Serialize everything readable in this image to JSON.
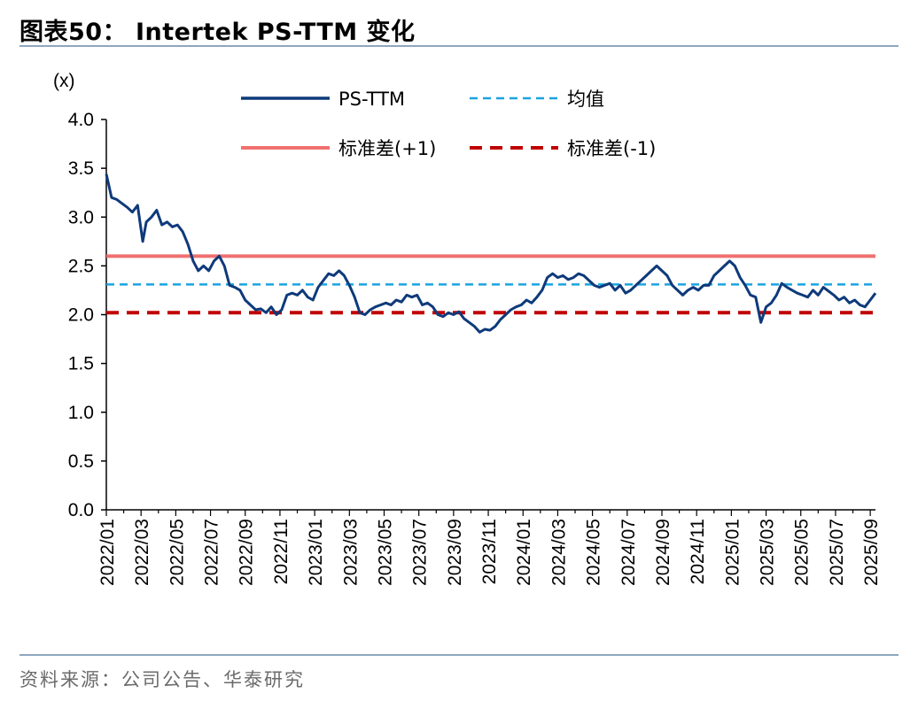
{
  "header": {
    "title": "图表50： Intertek PS-TTM 变化"
  },
  "footer": {
    "source": "资料来源：公司公告、华泰研究"
  },
  "chart_data": {
    "type": "line",
    "unit_label": "(x)",
    "ylim": [
      0.0,
      4.0
    ],
    "yticks": [
      "0.0",
      "0.5",
      "1.0",
      "1.5",
      "2.0",
      "2.5",
      "3.0",
      "3.5",
      "4.0"
    ],
    "xticks": [
      "2022/01",
      "2022/03",
      "2022/05",
      "2022/07",
      "2022/09",
      "2022/11",
      "2023/01",
      "2023/03",
      "2023/05",
      "2023/07",
      "2023/09",
      "2023/11",
      "2024/01",
      "2024/03",
      "2024/05",
      "2024/07",
      "2024/09",
      "2024/11",
      "2025/01",
      "2025/03",
      "2025/05",
      "2025/07",
      "2025/09"
    ],
    "legend_placement": "top",
    "grid": false,
    "colors": {
      "ps_ttm": "#0e3a7a",
      "mean": "#1aa3e0",
      "plus1": "#f07070",
      "minus1": "#c00000"
    },
    "series": [
      {
        "name": "PS-TTM",
        "points": [
          [
            0.0,
            3.44
          ],
          [
            0.3,
            3.2
          ],
          [
            0.6,
            3.18
          ],
          [
            0.9,
            3.14
          ],
          [
            1.2,
            3.1
          ],
          [
            1.5,
            3.05
          ],
          [
            1.8,
            3.12
          ],
          [
            2.1,
            2.75
          ],
          [
            2.3,
            2.95
          ],
          [
            2.6,
            3.0
          ],
          [
            2.9,
            3.07
          ],
          [
            3.2,
            2.92
          ],
          [
            3.5,
            2.95
          ],
          [
            3.8,
            2.9
          ],
          [
            4.1,
            2.92
          ],
          [
            4.4,
            2.85
          ],
          [
            4.7,
            2.72
          ],
          [
            5.0,
            2.55
          ],
          [
            5.3,
            2.45
          ],
          [
            5.6,
            2.5
          ],
          [
            5.9,
            2.45
          ],
          [
            6.2,
            2.55
          ],
          [
            6.5,
            2.6
          ],
          [
            6.8,
            2.5
          ],
          [
            7.1,
            2.3
          ],
          [
            7.4,
            2.28
          ],
          [
            7.7,
            2.25
          ],
          [
            8.0,
            2.15
          ],
          [
            8.3,
            2.1
          ],
          [
            8.6,
            2.05
          ],
          [
            8.9,
            2.06
          ],
          [
            9.2,
            2.02
          ],
          [
            9.5,
            2.08
          ],
          [
            9.8,
            2.0
          ],
          [
            10.1,
            2.05
          ],
          [
            10.4,
            2.2
          ],
          [
            10.7,
            2.22
          ],
          [
            11.0,
            2.2
          ],
          [
            11.3,
            2.25
          ],
          [
            11.6,
            2.18
          ],
          [
            11.9,
            2.15
          ],
          [
            12.2,
            2.28
          ],
          [
            12.5,
            2.35
          ],
          [
            12.8,
            2.42
          ],
          [
            13.1,
            2.4
          ],
          [
            13.4,
            2.45
          ],
          [
            13.7,
            2.4
          ],
          [
            14.0,
            2.3
          ],
          [
            14.3,
            2.18
          ],
          [
            14.6,
            2.02
          ],
          [
            14.9,
            2.0
          ],
          [
            15.2,
            2.05
          ],
          [
            15.5,
            2.08
          ],
          [
            15.8,
            2.1
          ],
          [
            16.1,
            2.12
          ],
          [
            16.4,
            2.1
          ],
          [
            16.7,
            2.15
          ],
          [
            17.0,
            2.13
          ],
          [
            17.3,
            2.2
          ],
          [
            17.6,
            2.18
          ],
          [
            17.9,
            2.2
          ],
          [
            18.2,
            2.1
          ],
          [
            18.5,
            2.12
          ],
          [
            18.8,
            2.08
          ],
          [
            19.1,
            2.0
          ],
          [
            19.4,
            1.98
          ],
          [
            19.7,
            2.02
          ],
          [
            20.0,
            2.0
          ],
          [
            20.3,
            2.03
          ],
          [
            20.6,
            1.96
          ],
          [
            20.9,
            1.92
          ],
          [
            21.2,
            1.88
          ],
          [
            21.5,
            1.82
          ],
          [
            21.8,
            1.85
          ],
          [
            22.1,
            1.84
          ],
          [
            22.4,
            1.88
          ],
          [
            22.7,
            1.95
          ],
          [
            23.0,
            2.0
          ],
          [
            23.3,
            2.05
          ],
          [
            23.6,
            2.08
          ],
          [
            23.9,
            2.1
          ],
          [
            24.2,
            2.15
          ],
          [
            24.5,
            2.12
          ],
          [
            24.8,
            2.18
          ],
          [
            25.1,
            2.25
          ],
          [
            25.4,
            2.38
          ],
          [
            25.7,
            2.42
          ],
          [
            26.0,
            2.38
          ],
          [
            26.3,
            2.4
          ],
          [
            26.6,
            2.36
          ],
          [
            26.9,
            2.38
          ],
          [
            27.2,
            2.42
          ],
          [
            27.5,
            2.4
          ],
          [
            27.8,
            2.35
          ],
          [
            28.1,
            2.3
          ],
          [
            28.4,
            2.28
          ],
          [
            28.7,
            2.3
          ],
          [
            29.0,
            2.32
          ],
          [
            29.3,
            2.25
          ],
          [
            29.6,
            2.3
          ],
          [
            29.9,
            2.22
          ],
          [
            30.2,
            2.25
          ],
          [
            30.5,
            2.3
          ],
          [
            30.8,
            2.35
          ],
          [
            31.1,
            2.4
          ],
          [
            31.4,
            2.45
          ],
          [
            31.7,
            2.5
          ],
          [
            32.0,
            2.45
          ],
          [
            32.3,
            2.4
          ],
          [
            32.6,
            2.3
          ],
          [
            32.9,
            2.25
          ],
          [
            33.2,
            2.2
          ],
          [
            33.5,
            2.25
          ],
          [
            33.8,
            2.28
          ],
          [
            34.1,
            2.25
          ],
          [
            34.4,
            2.3
          ],
          [
            34.7,
            2.3
          ],
          [
            35.0,
            2.4
          ],
          [
            35.3,
            2.45
          ],
          [
            35.6,
            2.5
          ],
          [
            35.9,
            2.55
          ],
          [
            36.2,
            2.5
          ],
          [
            36.5,
            2.38
          ],
          [
            36.8,
            2.3
          ],
          [
            37.1,
            2.2
          ],
          [
            37.4,
            2.18
          ],
          [
            37.7,
            1.92
          ],
          [
            38.0,
            2.08
          ],
          [
            38.3,
            2.12
          ],
          [
            38.6,
            2.2
          ],
          [
            38.9,
            2.32
          ],
          [
            39.2,
            2.28
          ],
          [
            39.5,
            2.25
          ],
          [
            39.8,
            2.22
          ],
          [
            40.1,
            2.2
          ],
          [
            40.4,
            2.18
          ],
          [
            40.7,
            2.25
          ],
          [
            41.0,
            2.2
          ],
          [
            41.3,
            2.28
          ],
          [
            41.6,
            2.24
          ],
          [
            41.9,
            2.2
          ],
          [
            42.2,
            2.15
          ],
          [
            42.5,
            2.18
          ],
          [
            42.8,
            2.12
          ],
          [
            43.1,
            2.15
          ],
          [
            43.4,
            2.1
          ],
          [
            43.7,
            2.08
          ],
          [
            44.0,
            2.15
          ],
          [
            44.3,
            2.22
          ]
        ]
      },
      {
        "name": "均值",
        "value": 2.31
      },
      {
        "name": "标准差(+1)",
        "value": 2.6
      },
      {
        "name": "标准差(-1)",
        "value": 2.02
      }
    ]
  }
}
